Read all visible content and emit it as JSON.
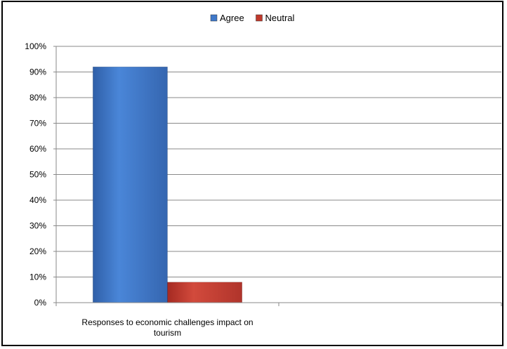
{
  "chart_data": {
    "type": "bar",
    "categories": [
      "Responses to economic challenges impact on tourism"
    ],
    "category_lines": [
      [
        "Responses to economic challenges impact on",
        "tourism"
      ]
    ],
    "series": [
      {
        "name": "Agree",
        "values": [
          92
        ],
        "color": "#3f78c9"
      },
      {
        "name": "Neutral",
        "values": [
          8
        ],
        "color": "#c0392b"
      }
    ],
    "ylim": [
      0,
      100
    ],
    "yticks": [
      "0%",
      "10%",
      "20%",
      "30%",
      "40%",
      "50%",
      "60%",
      "70%",
      "80%",
      "90%",
      "100%"
    ],
    "grid": true,
    "legend": "top-center",
    "title": "",
    "xlabel": "",
    "ylabel": ""
  }
}
